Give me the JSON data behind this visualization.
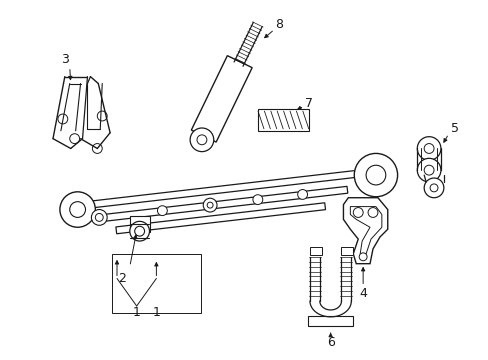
{
  "background_color": "#ffffff",
  "line_color": "#1a1a1a",
  "figsize": [
    4.89,
    3.6
  ],
  "dpi": 100,
  "label_fontsize": 9
}
